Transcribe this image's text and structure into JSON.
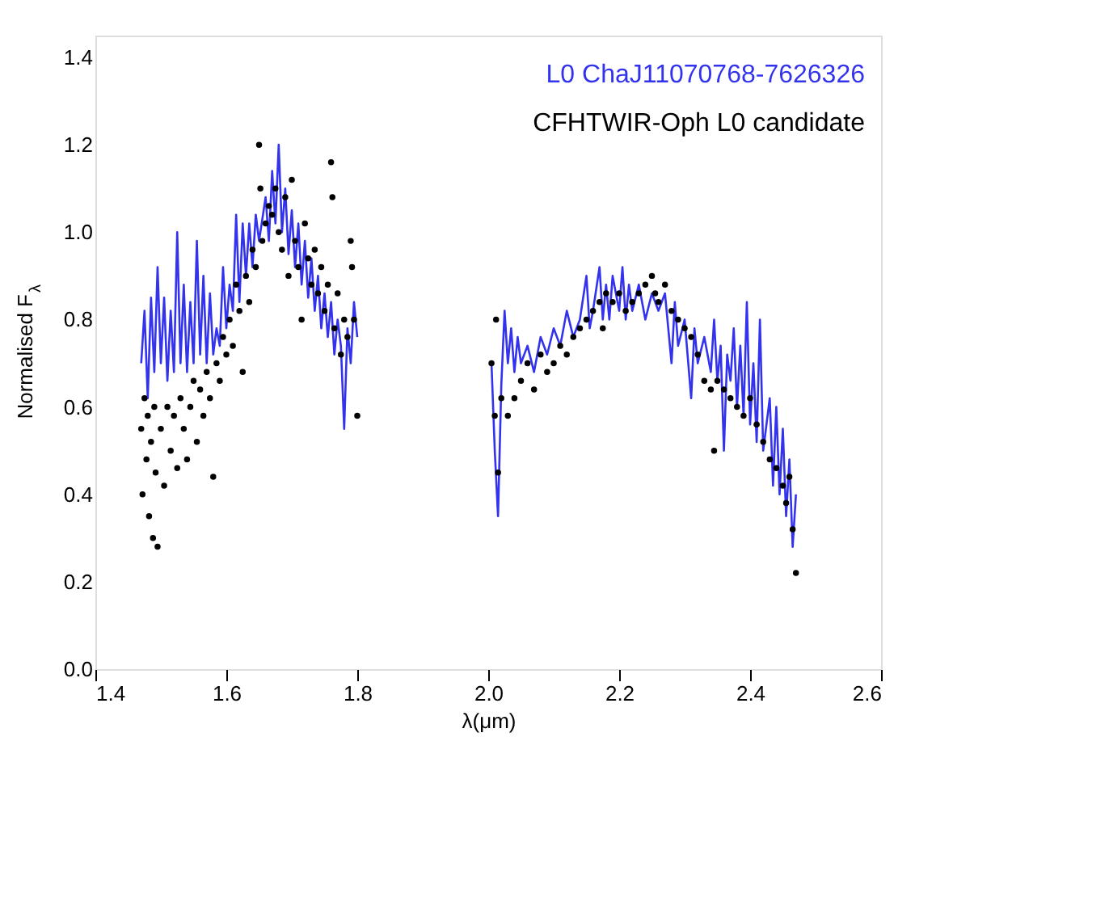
{
  "chart_data": {
    "type": "line",
    "xlabel": "λ(μm)",
    "ylabel": "Normalised F$_{λ}$",
    "xlim": [
      1.4,
      2.6
    ],
    "xticks": [
      1.4,
      1.6,
      1.8,
      {
        "value": 2,
        "label": "2.0"
      },
      2.2,
      2.4,
      2.6
    ],
    "ylim": [
      0,
      1.45
    ],
    "yticks": [
      {
        "value": 0,
        "label": "0.0"
      },
      0.2,
      0.4,
      0.6,
      0.8,
      {
        "value": 1,
        "label": "1.0"
      },
      1.2,
      1.4
    ],
    "grid": false,
    "legend": "top right",
    "series": [
      {
        "name": "L0  ChaJ11070768-7626326",
        "color": "#3333ee",
        "marker": "none",
        "line_style": "solid",
        "x": [
          1.47,
          1.475,
          1.48,
          1.485,
          1.49,
          1.495,
          1.5,
          1.505,
          1.51,
          1.515,
          1.52,
          1.525,
          1.53,
          1.535,
          1.54,
          1.545,
          1.55,
          1.555,
          1.56,
          1.565,
          1.57,
          1.575,
          1.58,
          1.585,
          1.59,
          1.595,
          1.6,
          1.605,
          1.61,
          1.615,
          1.62,
          1.625,
          1.63,
          1.635,
          1.64,
          1.645,
          1.65,
          1.66,
          1.665,
          1.67,
          1.675,
          1.68,
          1.685,
          1.69,
          1.695,
          1.7,
          1.705,
          1.71,
          1.715,
          1.72,
          1.725,
          1.73,
          1.735,
          1.74,
          1.745,
          1.75,
          1.755,
          1.76,
          1.765,
          1.77,
          1.775,
          1.78,
          1.785,
          1.79,
          1.795,
          1.8,
          1.9,
          2.005,
          2.01,
          2.015,
          2.02,
          2.025,
          2.03,
          2.035,
          2.04,
          2.045,
          2.05,
          2.06,
          2.07,
          2.08,
          2.09,
          2.1,
          2.11,
          2.12,
          2.13,
          2.14,
          2.15,
          2.155,
          2.16,
          2.17,
          2.175,
          2.18,
          2.185,
          2.19,
          2.2,
          2.205,
          2.21,
          2.215,
          2.22,
          2.23,
          2.24,
          2.25,
          2.26,
          2.27,
          2.28,
          2.285,
          2.29,
          2.3,
          2.31,
          2.315,
          2.32,
          2.33,
          2.34,
          2.345,
          2.35,
          2.355,
          2.36,
          2.365,
          2.37,
          2.375,
          2.38,
          2.385,
          2.39,
          2.395,
          2.4,
          2.405,
          2.41,
          2.415,
          2.42,
          2.43,
          2.435,
          2.44,
          2.445,
          2.45,
          2.455,
          2.46,
          2.465,
          2.47
        ],
        "values": [
          0.7,
          0.82,
          0.62,
          0.85,
          0.68,
          0.92,
          0.7,
          0.85,
          0.66,
          0.82,
          0.68,
          1.0,
          0.7,
          0.88,
          0.68,
          0.84,
          0.7,
          0.98,
          0.72,
          0.9,
          0.7,
          0.86,
          0.72,
          0.78,
          0.74,
          0.92,
          0.78,
          0.88,
          0.82,
          1.04,
          0.84,
          1.02,
          0.9,
          1.02,
          0.92,
          1.04,
          0.98,
          1.08,
          0.98,
          1.14,
          1.02,
          1.2,
          1.0,
          1.1,
          0.95,
          1.05,
          0.92,
          1.02,
          0.88,
          0.98,
          0.85,
          0.94,
          0.82,
          0.9,
          0.78,
          0.86,
          0.76,
          0.84,
          0.72,
          0.8,
          0.74,
          0.55,
          0.78,
          0.7,
          0.84,
          0.76,
          null,
          0.7,
          0.5,
          0.35,
          0.65,
          0.82,
          0.7,
          0.78,
          0.68,
          0.76,
          0.7,
          0.74,
          0.68,
          0.76,
          0.72,
          0.78,
          0.74,
          0.82,
          0.76,
          0.8,
          0.9,
          0.78,
          0.82,
          0.92,
          0.8,
          0.88,
          0.8,
          0.9,
          0.82,
          0.92,
          0.8,
          0.88,
          0.82,
          0.88,
          0.8,
          0.86,
          0.82,
          0.86,
          0.7,
          0.84,
          0.74,
          0.8,
          0.62,
          0.78,
          0.7,
          0.76,
          0.68,
          0.8,
          0.66,
          0.74,
          0.5,
          0.72,
          0.66,
          0.78,
          0.6,
          0.74,
          0.58,
          0.84,
          0.56,
          0.7,
          0.52,
          0.8,
          0.5,
          0.62,
          0.42,
          0.6,
          0.4,
          0.55,
          0.35,
          0.48,
          0.28,
          0.4
        ]
      },
      {
        "name": "CFHTWIR-Oph  L0  candidate",
        "type": "scatter",
        "color": "#000000",
        "marker": "circle",
        "x": [
          1.47,
          1.472,
          1.475,
          1.478,
          1.48,
          1.482,
          1.485,
          1.488,
          1.49,
          1.492,
          1.495,
          1.5,
          1.505,
          1.51,
          1.515,
          1.52,
          1.525,
          1.53,
          1.535,
          1.54,
          1.545,
          1.55,
          1.555,
          1.56,
          1.565,
          1.57,
          1.575,
          1.58,
          1.585,
          1.59,
          1.595,
          1.6,
          1.605,
          1.61,
          1.615,
          1.62,
          1.625,
          1.63,
          1.635,
          1.64,
          1.645,
          1.65,
          1.652,
          1.655,
          1.66,
          1.665,
          1.67,
          1.675,
          1.68,
          1.685,
          1.69,
          1.695,
          1.7,
          1.705,
          1.71,
          1.715,
          1.72,
          1.725,
          1.73,
          1.735,
          1.74,
          1.745,
          1.75,
          1.755,
          1.76,
          1.762,
          1.765,
          1.77,
          1.775,
          1.78,
          1.785,
          1.79,
          1.792,
          1.795,
          1.8,
          2.005,
          2.01,
          2.012,
          2.015,
          2.02,
          2.03,
          2.04,
          2.05,
          2.06,
          2.07,
          2.08,
          2.09,
          2.1,
          2.11,
          2.12,
          2.13,
          2.14,
          2.15,
          2.16,
          2.17,
          2.175,
          2.18,
          2.19,
          2.2,
          2.21,
          2.22,
          2.23,
          2.24,
          2.25,
          2.255,
          2.26,
          2.27,
          2.28,
          2.29,
          2.3,
          2.31,
          2.32,
          2.33,
          2.34,
          2.345,
          2.35,
          2.36,
          2.37,
          2.38,
          2.39,
          2.4,
          2.41,
          2.42,
          2.43,
          2.44,
          2.45,
          2.455,
          2.46,
          2.465,
          2.47
        ],
        "values": [
          0.55,
          0.4,
          0.62,
          0.48,
          0.58,
          0.35,
          0.52,
          0.3,
          0.6,
          0.45,
          0.28,
          0.55,
          0.42,
          0.6,
          0.5,
          0.58,
          0.46,
          0.62,
          0.55,
          0.48,
          0.6,
          0.66,
          0.52,
          0.64,
          0.58,
          0.68,
          0.62,
          0.44,
          0.7,
          0.66,
          0.76,
          0.72,
          0.8,
          0.74,
          0.88,
          0.82,
          0.68,
          0.9,
          0.84,
          0.96,
          0.92,
          1.2,
          1.1,
          0.98,
          1.02,
          1.06,
          1.04,
          1.1,
          1.0,
          0.96,
          1.08,
          0.9,
          1.12,
          0.98,
          0.92,
          0.8,
          1.02,
          0.94,
          0.88,
          0.96,
          0.86,
          0.92,
          0.82,
          0.88,
          1.16,
          1.08,
          0.78,
          0.86,
          0.72,
          0.8,
          0.76,
          0.98,
          0.92,
          0.8,
          0.58,
          0.7,
          0.58,
          0.8,
          0.45,
          0.62,
          0.58,
          0.62,
          0.66,
          0.7,
          0.64,
          0.72,
          0.68,
          0.7,
          0.74,
          0.72,
          0.76,
          0.78,
          0.8,
          0.82,
          0.84,
          0.78,
          0.86,
          0.84,
          0.86,
          0.82,
          0.84,
          0.86,
          0.88,
          0.9,
          0.86,
          0.84,
          0.88,
          0.82,
          0.8,
          0.78,
          0.76,
          0.72,
          0.66,
          0.64,
          0.5,
          0.66,
          0.64,
          0.62,
          0.6,
          0.58,
          0.62,
          0.56,
          0.52,
          0.48,
          0.46,
          0.42,
          0.38,
          0.44,
          0.32,
          0.22
        ]
      }
    ]
  }
}
